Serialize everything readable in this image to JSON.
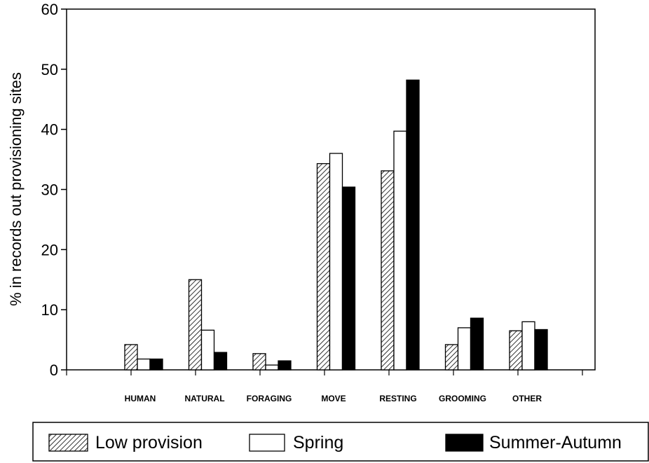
{
  "chart_data": {
    "type": "bar",
    "title": "",
    "xlabel": "",
    "ylabel": "% in records out provisioning sites",
    "ylim": [
      0,
      60
    ],
    "yticks": [
      0,
      10,
      20,
      30,
      40,
      50,
      60
    ],
    "grid": false,
    "legend_position": "bottom",
    "categories": [
      "HUMAN",
      "NATURAL",
      "FORAGING",
      "MOVE",
      "RESTING",
      "GROOMING",
      "OTHER"
    ],
    "series": [
      {
        "name": "Low provision",
        "style": "hatched",
        "values": [
          4.2,
          15.0,
          2.7,
          34.3,
          33.1,
          4.2,
          6.5
        ]
      },
      {
        "name": "Spring",
        "style": "white",
        "values": [
          1.8,
          6.6,
          0.8,
          36.0,
          39.7,
          7.0,
          8.0
        ]
      },
      {
        "name": "Summer-Autumn",
        "style": "black",
        "values": [
          1.8,
          2.9,
          1.5,
          30.4,
          48.2,
          8.6,
          6.7
        ]
      }
    ]
  }
}
